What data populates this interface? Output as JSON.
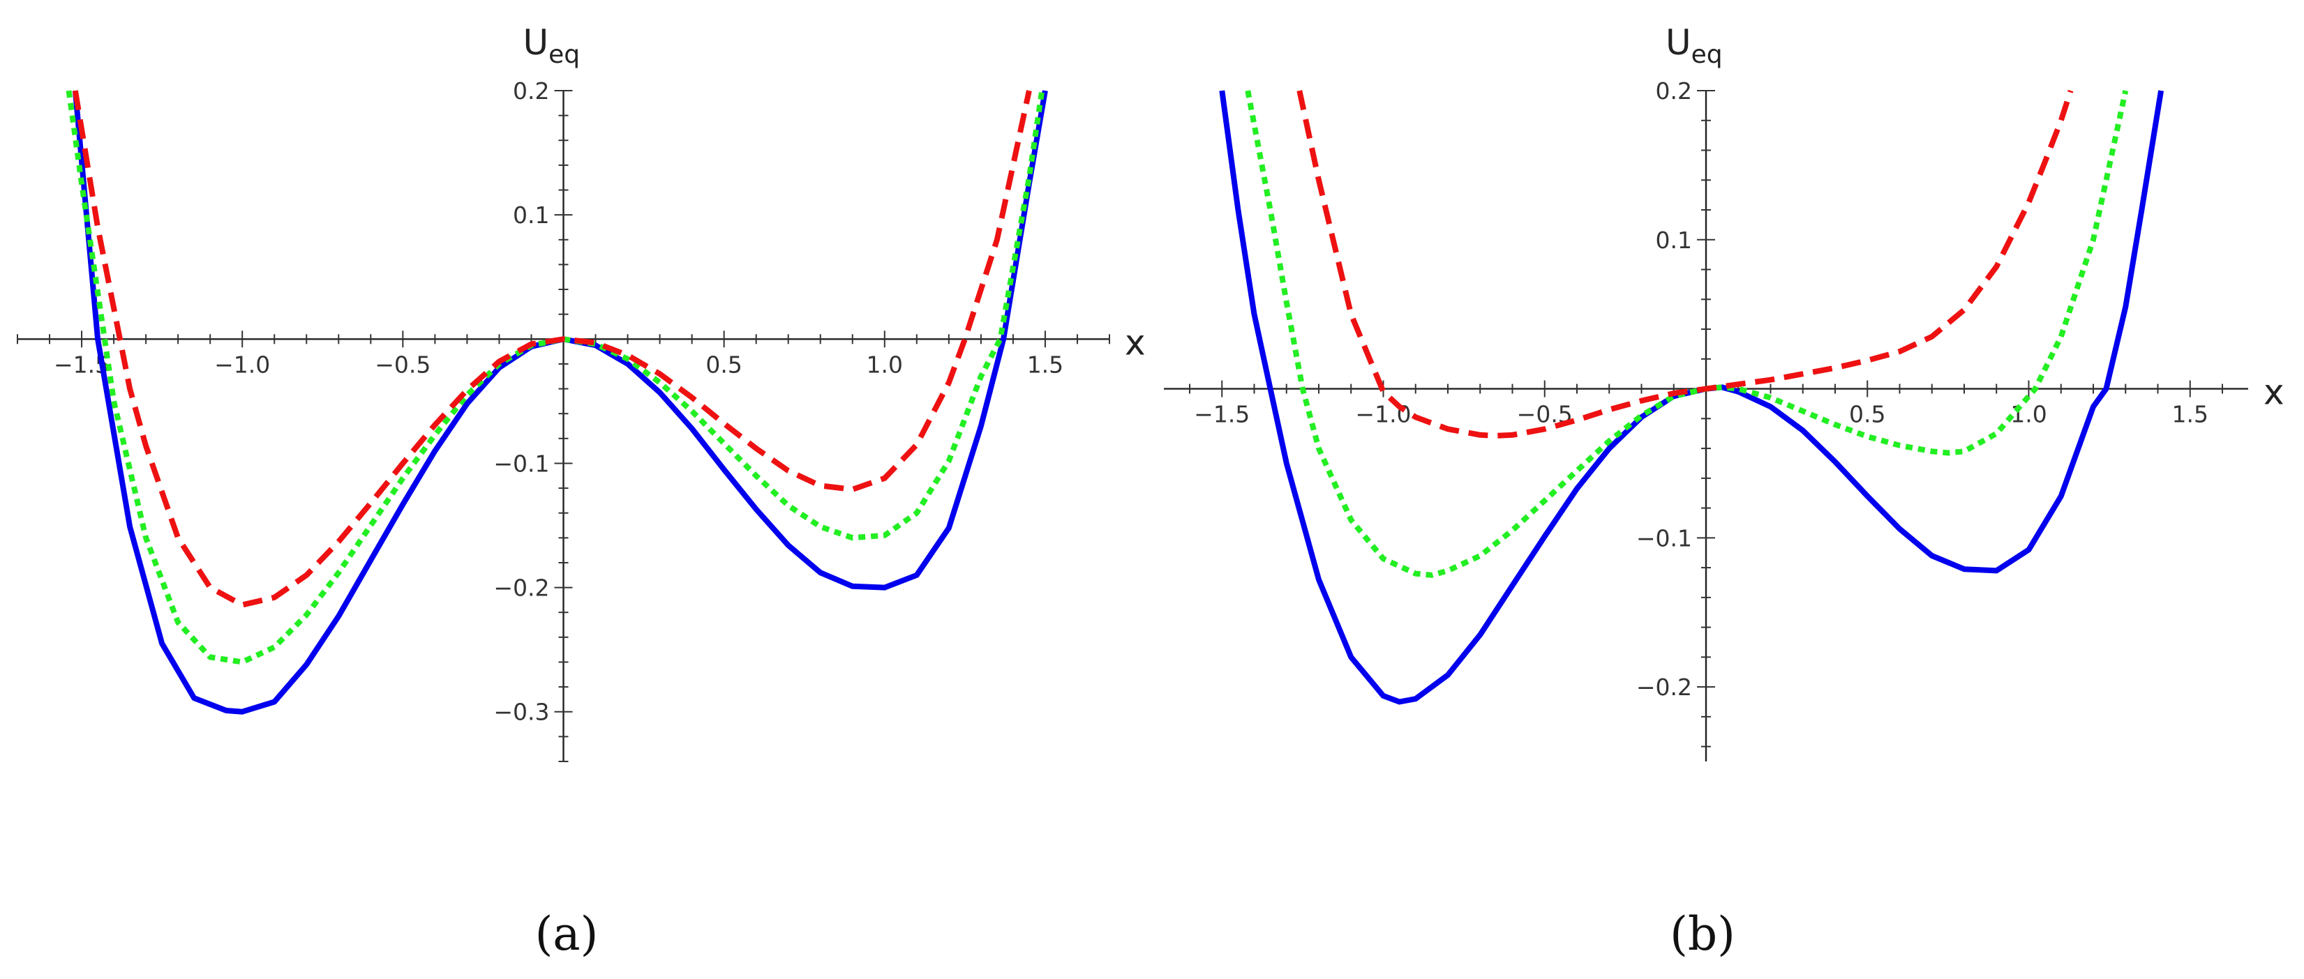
{
  "chart_data": [
    {
      "type": "line",
      "panel_label": "(a)",
      "xlabel": "x",
      "ylabel": {
        "main": "U",
        "sub": "eq"
      },
      "xlim": [
        -1.7,
        1.7
      ],
      "ylim": [
        -0.34,
        0.2
      ],
      "x_ticks": [
        {
          "v": -1.5,
          "label": "-1.5"
        },
        {
          "v": -1.0,
          "label": "-1.0"
        },
        {
          "v": -0.5,
          "label": "-0.5"
        },
        {
          "v": 0.5,
          "label": "0.5"
        },
        {
          "v": 1.0,
          "label": "1.0"
        },
        {
          "v": 1.5,
          "label": "1.5"
        }
      ],
      "y_ticks": [
        {
          "v": 0.2,
          "label": "0.2"
        },
        {
          "v": 0.1,
          "label": "0.1"
        },
        {
          "v": -0.1,
          "label": "-0.1"
        },
        {
          "v": -0.2,
          "label": "-0.2"
        },
        {
          "v": -0.3,
          "label": "-0.3"
        }
      ],
      "series": [
        {
          "color": "#0000ee",
          "style": "solid",
          "x": [
            -1.52,
            -1.45,
            -1.35,
            -1.25,
            -1.15,
            -1.05,
            -1.0,
            -0.9,
            -0.8,
            -0.7,
            -0.6,
            -0.5,
            -0.4,
            -0.3,
            -0.2,
            -0.1,
            0.0,
            0.1,
            0.2,
            0.3,
            0.4,
            0.5,
            0.6,
            0.7,
            0.8,
            0.9,
            1.0,
            1.1,
            1.2,
            1.3,
            1.37,
            1.45,
            1.5
          ],
          "y": [
            0.2,
            0.0,
            -0.151,
            -0.245,
            -0.289,
            -0.299,
            -0.3,
            -0.292,
            -0.262,
            -0.223,
            -0.178,
            -0.133,
            -0.09,
            -0.052,
            -0.023,
            -0.006,
            0.0,
            -0.005,
            -0.02,
            -0.043,
            -0.072,
            -0.105,
            -0.137,
            -0.166,
            -0.188,
            -0.199,
            -0.2,
            -0.19,
            -0.152,
            -0.07,
            0.0,
            0.125,
            0.2
          ]
        },
        {
          "color": "#22ee22",
          "style": "dotted",
          "x": [
            -1.54,
            -1.5,
            -1.4,
            -1.3,
            -1.2,
            -1.1,
            -1.0,
            -0.9,
            -0.8,
            -0.7,
            -0.6,
            -0.5,
            -0.4,
            -0.3,
            -0.2,
            -0.1,
            0.0,
            0.1,
            0.2,
            0.3,
            0.4,
            0.5,
            0.6,
            0.7,
            0.8,
            0.9,
            1.0,
            1.1,
            1.2,
            1.3,
            1.36,
            1.45,
            1.49
          ],
          "y": [
            0.2,
            0.125,
            -0.05,
            -0.16,
            -0.228,
            -0.256,
            -0.26,
            -0.248,
            -0.222,
            -0.188,
            -0.15,
            -0.112,
            -0.077,
            -0.045,
            -0.02,
            -0.005,
            0.0,
            -0.004,
            -0.016,
            -0.035,
            -0.058,
            -0.084,
            -0.11,
            -0.134,
            -0.151,
            -0.16,
            -0.158,
            -0.14,
            -0.098,
            -0.03,
            0.0,
            0.13,
            0.2
          ]
        },
        {
          "color": "#ee1111",
          "style": "dashed",
          "x": [
            -1.52,
            -1.45,
            -1.35,
            -1.3,
            -1.2,
            -1.1,
            -1.0,
            -0.9,
            -0.8,
            -0.7,
            -0.6,
            -0.5,
            -0.4,
            -0.3,
            -0.2,
            -0.1,
            0.0,
            0.1,
            0.2,
            0.3,
            0.4,
            0.5,
            0.6,
            0.7,
            0.8,
            0.9,
            1.0,
            1.1,
            1.2,
            1.25,
            1.35,
            1.45
          ],
          "y": [
            0.2,
            0.09,
            -0.04,
            -0.086,
            -0.16,
            -0.2,
            -0.214,
            -0.208,
            -0.19,
            -0.163,
            -0.132,
            -0.1,
            -0.069,
            -0.041,
            -0.018,
            -0.004,
            0.0,
            -0.003,
            -0.013,
            -0.028,
            -0.047,
            -0.068,
            -0.088,
            -0.106,
            -0.118,
            -0.121,
            -0.112,
            -0.085,
            -0.035,
            0.0,
            0.08,
            0.2
          ]
        }
      ]
    },
    {
      "type": "line",
      "panel_label": "(b)",
      "xlabel": "x",
      "ylabel": {
        "main": "U",
        "sub": "eq"
      },
      "xlim": [
        -1.68,
        1.68
      ],
      "ylim": [
        -0.25,
        0.2
      ],
      "x_ticks": [
        {
          "v": -1.5,
          "label": "-1.5"
        },
        {
          "v": -1.0,
          "label": "-1.0"
        },
        {
          "v": -0.5,
          "label": "-0.5"
        },
        {
          "v": 0.5,
          "label": "0.5"
        },
        {
          "v": 1.0,
          "label": "1.0"
        },
        {
          "v": 1.5,
          "label": "1.5"
        }
      ],
      "y_ticks": [
        {
          "v": 0.2,
          "label": "0.2"
        },
        {
          "v": 0.1,
          "label": "0.1"
        },
        {
          "v": -0.1,
          "label": "-0.1"
        },
        {
          "v": -0.2,
          "label": "-0.2"
        }
      ],
      "series": [
        {
          "color": "#0000ee",
          "style": "solid",
          "x": [
            -1.5,
            -1.45,
            -1.4,
            -1.35,
            -1.3,
            -1.2,
            -1.1,
            -1.0,
            -0.95,
            -0.9,
            -0.8,
            -0.7,
            -0.6,
            -0.5,
            -0.4,
            -0.3,
            -0.2,
            -0.1,
            0.0,
            0.05,
            0.1,
            0.2,
            0.3,
            0.4,
            0.5,
            0.6,
            0.7,
            0.8,
            0.9,
            1.0,
            1.1,
            1.2,
            1.24,
            1.3,
            1.35,
            1.41
          ],
          "y": [
            0.2,
            0.12,
            0.05,
            0.0,
            -0.05,
            -0.128,
            -0.18,
            -0.206,
            -0.21,
            -0.208,
            -0.192,
            -0.165,
            -0.132,
            -0.099,
            -0.067,
            -0.04,
            -0.019,
            -0.005,
            0.0,
            0.001,
            -0.002,
            -0.012,
            -0.028,
            -0.049,
            -0.072,
            -0.094,
            -0.112,
            -0.121,
            -0.122,
            -0.108,
            -0.072,
            -0.012,
            0.0,
            0.055,
            0.12,
            0.2
          ]
        },
        {
          "color": "#22ee22",
          "style": "dotted",
          "x": [
            -1.42,
            -1.35,
            -1.3,
            -1.25,
            -1.2,
            -1.1,
            -1.0,
            -0.9,
            -0.85,
            -0.8,
            -0.7,
            -0.6,
            -0.5,
            -0.4,
            -0.3,
            -0.2,
            -0.1,
            0.0,
            0.05,
            0.1,
            0.2,
            0.3,
            0.4,
            0.5,
            0.6,
            0.7,
            0.75,
            0.8,
            0.9,
            1.0,
            1.02,
            1.1,
            1.2,
            1.3
          ],
          "y": [
            0.2,
            0.12,
            0.058,
            0.0,
            -0.04,
            -0.088,
            -0.114,
            -0.124,
            -0.125,
            -0.122,
            -0.112,
            -0.095,
            -0.075,
            -0.055,
            -0.035,
            -0.018,
            -0.005,
            0.0,
            0.001,
            0.0,
            -0.006,
            -0.015,
            -0.024,
            -0.032,
            -0.038,
            -0.042,
            -0.043,
            -0.042,
            -0.03,
            -0.005,
            0.0,
            0.035,
            0.1,
            0.2
          ]
        },
        {
          "color": "#ee1111",
          "style": "dashed",
          "x": [
            -1.26,
            -1.2,
            -1.1,
            -1.0,
            -0.95,
            -0.9,
            -0.8,
            -0.7,
            -0.65,
            -0.6,
            -0.5,
            -0.4,
            -0.3,
            -0.2,
            -0.1,
            0.0,
            0.1,
            0.2,
            0.3,
            0.4,
            0.5,
            0.6,
            0.7,
            0.8,
            0.9,
            1.0,
            1.05,
            1.1,
            1.13
          ],
          "y": [
            0.2,
            0.14,
            0.05,
            -0.002,
            -0.012,
            -0.019,
            -0.027,
            -0.031,
            -0.0315,
            -0.031,
            -0.027,
            -0.021,
            -0.014,
            -0.008,
            -0.003,
            0.0,
            0.003,
            0.006,
            0.01,
            0.014,
            0.019,
            0.025,
            0.035,
            0.053,
            0.082,
            0.125,
            0.152,
            0.18,
            0.2
          ]
        }
      ]
    }
  ]
}
